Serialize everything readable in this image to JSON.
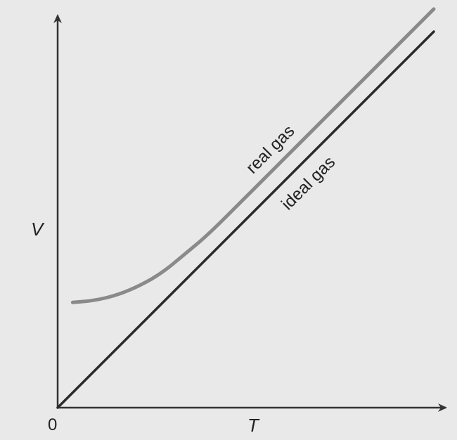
{
  "chart_data": {
    "type": "line",
    "title": "",
    "xlabel": "T",
    "ylabel": "V",
    "origin_label": "0",
    "xlim": [
      0,
      10
    ],
    "ylim": [
      0,
      10
    ],
    "grid": false,
    "legend": "inline labels along lines",
    "series": [
      {
        "name": "ideal gas",
        "color": "#2a2a2a",
        "x": [
          0,
          10
        ],
        "y": [
          0,
          10
        ]
      },
      {
        "name": "real gas",
        "color": "#8a8a8a",
        "x": [
          0.4,
          1.0,
          1.6,
          2.2,
          2.8,
          3.4,
          4.0,
          5.0,
          6.0,
          7.0,
          8.0,
          9.0,
          10.0
        ],
        "y": [
          2.8,
          2.85,
          3.0,
          3.25,
          3.6,
          4.1,
          4.6,
          5.6,
          6.6,
          7.6,
          8.6,
          9.6,
          10.6
        ]
      }
    ]
  }
}
